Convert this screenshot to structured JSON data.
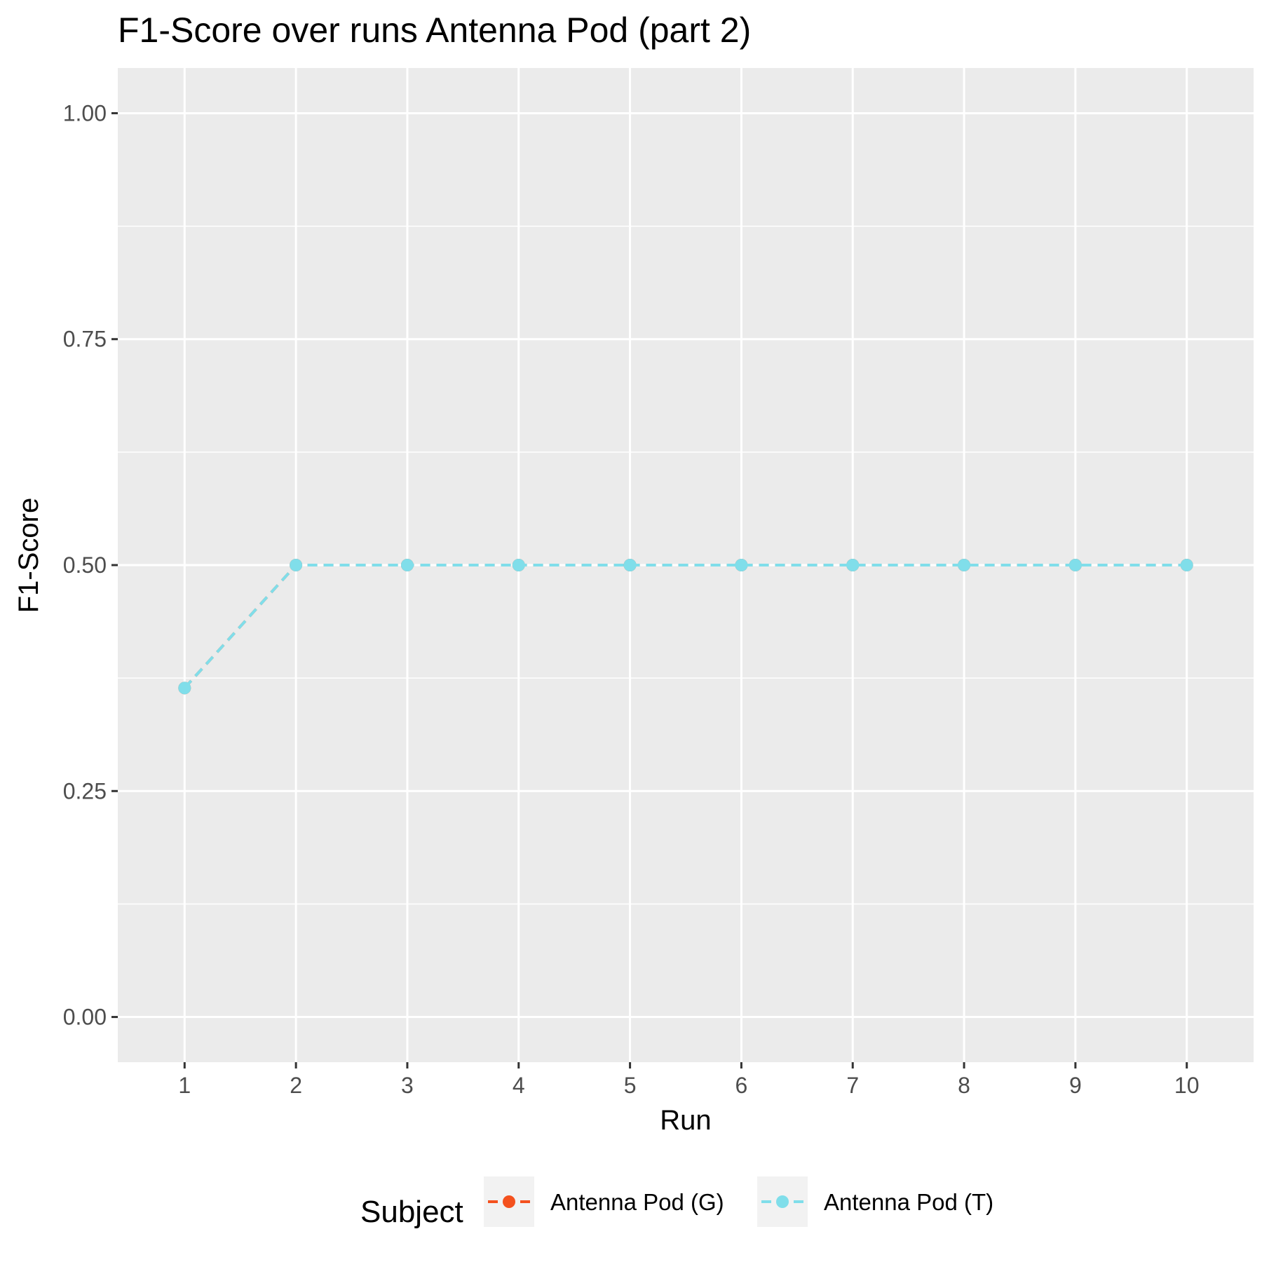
{
  "chart_data": {
    "type": "line",
    "title": "F1-Score over runs Antenna Pod (part 2)",
    "xlabel": "Run",
    "ylabel": "F1-Score",
    "x": [
      1,
      2,
      3,
      4,
      5,
      6,
      7,
      8,
      9,
      10
    ],
    "x_ticks": [
      "1",
      "2",
      "3",
      "4",
      "5",
      "6",
      "7",
      "8",
      "9",
      "10"
    ],
    "y_ticks": [
      "0.00",
      "0.25",
      "0.50",
      "0.75",
      "1.00"
    ],
    "xlim": [
      0.4,
      10.6
    ],
    "ylim": [
      -0.05,
      1.05
    ],
    "grid": true,
    "legend_position": "bottom",
    "legend_title": "Subject",
    "series": [
      {
        "name": "Antenna Pod (G)",
        "color": "#f4511e",
        "values": [
          0.364,
          0.5,
          0.5,
          0.5,
          0.5,
          0.5,
          0.5,
          0.5,
          0.5,
          0.5
        ]
      },
      {
        "name": "Antenna Pod (T)",
        "color": "#80deea",
        "values": [
          0.364,
          0.5,
          0.5,
          0.5,
          0.5,
          0.5,
          0.5,
          0.5,
          0.5,
          0.5
        ]
      }
    ]
  }
}
